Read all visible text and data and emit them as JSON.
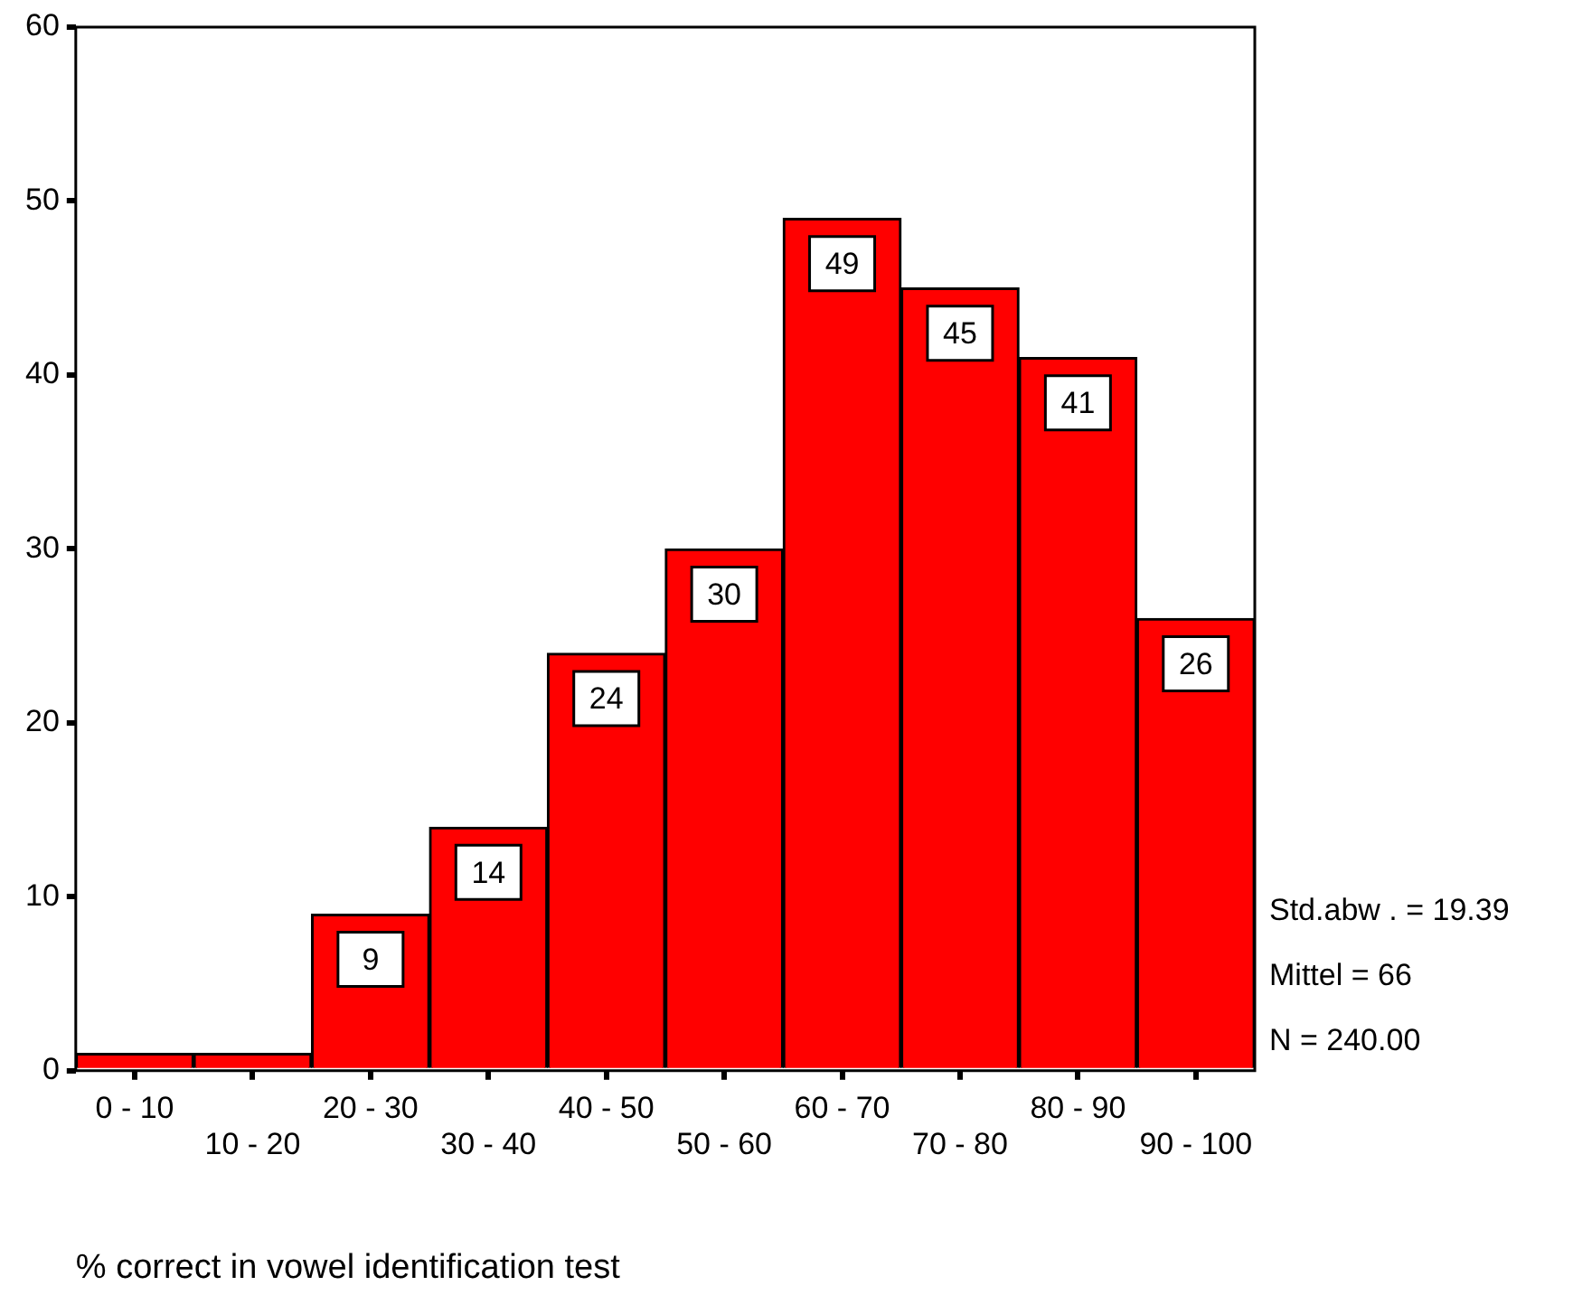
{
  "chart_data": {
    "type": "bar",
    "xlabel": "% correct in vowel identification test",
    "categories": [
      "0 - 10",
      "10 - 20",
      "20 - 30",
      "30 - 40",
      "40 - 50",
      "50 - 60",
      "60 - 70",
      "70 - 80",
      "80 - 90",
      "90 - 100"
    ],
    "values": [
      1,
      1,
      9,
      14,
      24,
      30,
      49,
      45,
      41,
      26
    ],
    "value_labels": [
      null,
      null,
      "9",
      "14",
      "24",
      "30",
      "49",
      "45",
      "41",
      "26"
    ],
    "color": "#ff0000",
    "ylim": [
      0,
      60
    ],
    "yticks": [
      0,
      10,
      20,
      30,
      40,
      50,
      60
    ],
    "grid": false,
    "legend": false,
    "annotations": [
      "Std.abw . = 19.39",
      "Mittel = 66",
      "N = 240.00"
    ]
  }
}
